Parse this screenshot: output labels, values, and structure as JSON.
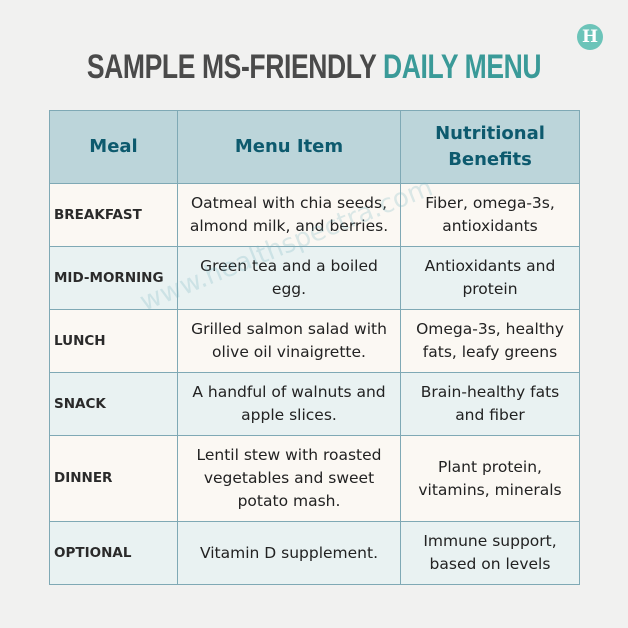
{
  "logo_letter": "H",
  "title": {
    "part1": "SAMPLE MS-FRIENDLY ",
    "part2": "DAILY MENU"
  },
  "watermark": "www.healthspectra.com",
  "table": {
    "headers": [
      "Meal",
      "Menu Item",
      "Nutritional Benefits"
    ],
    "rows": [
      {
        "meal": "BREAKFAST",
        "item": "Oatmeal with chia seeds, almond milk, and berries.",
        "benefits": "Fiber, omega-3s, antioxidants"
      },
      {
        "meal": "MID-MORNING",
        "item": "Green tea and a boiled egg.",
        "benefits": "Antioxidants and protein"
      },
      {
        "meal": "LUNCH",
        "item": "Grilled salmon salad with olive oil vinaigrette.",
        "benefits": "Omega-3s, healthy fats, leafy greens"
      },
      {
        "meal": "SNACK",
        "item": "A handful of walnuts and apple slices.",
        "benefits": "Brain-healthy fats and fiber"
      },
      {
        "meal": "DINNER",
        "item": "Lentil stew with roasted vegetables and sweet potato mash.",
        "benefits": "Plant protein, vitamins, minerals"
      },
      {
        "meal": "OPTIONAL",
        "item": "Vitamin D supplement.",
        "benefits": "Immune support, based on levels"
      }
    ]
  }
}
